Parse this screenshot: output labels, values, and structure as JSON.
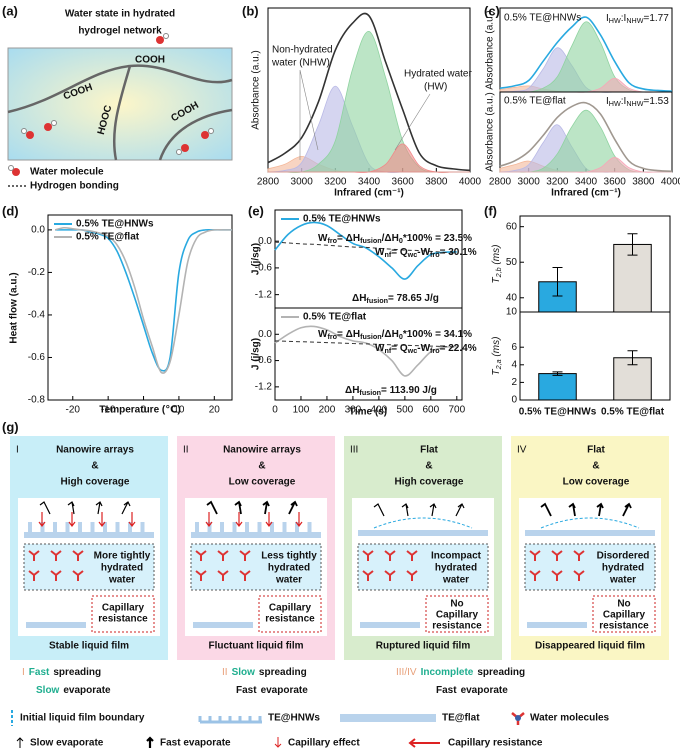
{
  "panel_labels": [
    "(a)",
    "(b)",
    "(c)",
    "(d)",
    "(e)",
    "(f)",
    "(g)"
  ],
  "panel_a": {
    "title": [
      "Water state in hydrated",
      "hydrogel network"
    ],
    "groups": [
      "COOH",
      "COOH",
      "HOOC",
      "COOH"
    ],
    "legend": [
      "Water molecule",
      "Hydrogen bonding"
    ]
  },
  "chart_data": [
    {
      "type": "line",
      "x": [
        2800,
        2900,
        3000,
        3100,
        3200,
        3300,
        3400,
        3500,
        3600,
        3700,
        3800,
        3900,
        4000
      ],
      "series": [
        {
          "kind": "area",
          "color": "#f4b89a",
          "values": [
            0.02,
            0.05,
            0.1,
            0.05,
            0.01,
            0,
            0,
            0,
            0,
            0,
            0,
            0,
            0
          ]
        },
        {
          "kind": "area",
          "color": "#b9b9e6",
          "values": [
            0,
            0.01,
            0.06,
            0.3,
            0.55,
            0.3,
            0.05,
            0,
            0,
            0,
            0,
            0,
            0
          ]
        },
        {
          "kind": "area",
          "color": "#8fd3a0",
          "values": [
            0,
            0,
            0,
            0.05,
            0.2,
            0.65,
            0.9,
            0.6,
            0.2,
            0.03,
            0,
            0,
            0
          ]
        },
        {
          "kind": "area",
          "color": "#f08a8a",
          "values": [
            0,
            0,
            0,
            0,
            0,
            0,
            0,
            0.05,
            0.18,
            0.04,
            0,
            0,
            0
          ]
        },
        {
          "kind": "line",
          "color": "#333333",
          "values": [
            0.06,
            0.12,
            0.22,
            0.45,
            0.78,
            0.95,
            1.0,
            0.7,
            0.4,
            0.12,
            0.04,
            0.02,
            0.01
          ]
        }
      ],
      "xlim": [
        2800,
        4000
      ],
      "xticks": [
        2800,
        3000,
        3200,
        3400,
        3600,
        3800,
        4000
      ],
      "ylim": [
        0,
        1.05
      ],
      "xlabel": "Infrared (cm⁻¹)",
      "ylabel": "Absorbance (a.u.)",
      "annotations": [
        "Non-hydrated",
        "water (NHW)",
        "Hydrated water",
        "(HW)"
      ]
    },
    {
      "type": "line",
      "x": [
        2800,
        2900,
        3000,
        3100,
        3200,
        3300,
        3400,
        3500,
        3600,
        3700,
        3800,
        3900,
        4000
      ],
      "series": [
        {
          "kind": "area",
          "color": "#f4b89a",
          "values": [
            0.03,
            0.06,
            0.08,
            0.04,
            0.01,
            0,
            0,
            0,
            0,
            0,
            0,
            0,
            0
          ]
        },
        {
          "kind": "area",
          "color": "#b9b9e6",
          "values": [
            0,
            0.01,
            0.05,
            0.3,
            0.58,
            0.35,
            0.06,
            0,
            0,
            0,
            0,
            0,
            0
          ]
        },
        {
          "kind": "area",
          "color": "#8fd3a0",
          "values": [
            0,
            0,
            0,
            0.05,
            0.2,
            0.6,
            0.92,
            0.65,
            0.2,
            0.03,
            0,
            0,
            0
          ]
        },
        {
          "kind": "area",
          "color": "#f5a9b8",
          "values": [
            0,
            0,
            0,
            0,
            0,
            0,
            0,
            0.05,
            0.18,
            0.05,
            0,
            0,
            0
          ]
        },
        {
          "kind": "line",
          "color": "#29a9e0",
          "values": [
            0.05,
            0.08,
            0.15,
            0.4,
            0.65,
            0.85,
            0.98,
            0.75,
            0.4,
            0.12,
            0.04,
            0.02,
            0.01
          ]
        }
      ],
      "xlim": [
        2800,
        4000
      ],
      "ylim": [
        0,
        1.1
      ],
      "ylabel": "Absorbance (a.u.)",
      "label": "0.5% TE@HNWs",
      "ratio": [
        "I",
        "HW",
        ":I",
        "NHW",
        "=1.77"
      ]
    },
    {
      "type": "line",
      "x": [
        2800,
        2900,
        3000,
        3100,
        3200,
        3300,
        3400,
        3500,
        3600,
        3700,
        3800,
        3900,
        4000
      ],
      "series": [
        {
          "kind": "area",
          "color": "#f4b89a",
          "values": [
            0.05,
            0.1,
            0.15,
            0.08,
            0.02,
            0,
            0,
            0,
            0,
            0,
            0,
            0,
            0
          ]
        },
        {
          "kind": "area",
          "color": "#b9b9e6",
          "values": [
            0,
            0.02,
            0.1,
            0.4,
            0.65,
            0.35,
            0.05,
            0,
            0,
            0,
            0,
            0,
            0
          ]
        },
        {
          "kind": "area",
          "color": "#8fd3a0",
          "values": [
            0,
            0,
            0,
            0.05,
            0.25,
            0.62,
            0.85,
            0.62,
            0.22,
            0.03,
            0,
            0,
            0
          ]
        },
        {
          "kind": "area",
          "color": "#f5a9b8",
          "values": [
            0,
            0,
            0,
            0,
            0,
            0,
            0,
            0.06,
            0.2,
            0.06,
            0,
            0,
            0
          ]
        },
        {
          "kind": "line",
          "color": "#a09890",
          "values": [
            0.08,
            0.15,
            0.28,
            0.5,
            0.75,
            0.9,
            0.95,
            0.8,
            0.45,
            0.15,
            0.05,
            0.02,
            0.01
          ]
        }
      ],
      "xlim": [
        2800,
        4000
      ],
      "xticks": [
        2800,
        3000,
        3200,
        3400,
        3600,
        3800,
        4000
      ],
      "ylim": [
        0,
        1.1
      ],
      "xlabel": "Infrared (cm⁻¹)",
      "ylabel": "Absorbance (a.u.)",
      "label": "0.5% TE@flat",
      "ratio": [
        "I",
        "HW",
        ":I",
        "NHW",
        "=1.53"
      ]
    },
    {
      "type": "line",
      "x": [
        -25,
        -22.5,
        -20,
        -17.5,
        -15,
        -12.5,
        -10,
        -7.5,
        -5,
        -2.5,
        0,
        2.5,
        5,
        7.5,
        10,
        12.5,
        15,
        17.5,
        20,
        22.5,
        25
      ],
      "series": [
        {
          "name": "0.5% TE@HNWs",
          "kind": "line",
          "color": "#29a9e0",
          "values": [
            0,
            0,
            0,
            0,
            -0.01,
            -0.02,
            -0.04,
            -0.1,
            -0.2,
            -0.32,
            -0.45,
            -0.58,
            -0.66,
            -0.6,
            -0.2,
            -0.05,
            -0.01,
            0,
            0,
            0,
            0
          ]
        },
        {
          "name": "0.5% TE@flat",
          "kind": "line",
          "color": "#b3b3b3",
          "values": [
            0,
            0.01,
            0.005,
            0,
            -0.005,
            -0.015,
            -0.03,
            -0.07,
            -0.15,
            -0.27,
            -0.42,
            -0.55,
            -0.67,
            -0.62,
            -0.4,
            -0.15,
            -0.04,
            -0.01,
            0,
            0,
            0
          ]
        }
      ],
      "xlim": [
        -27,
        25
      ],
      "xticks": [
        -20,
        -10,
        0,
        10,
        20
      ],
      "ylim": [
        -0.8,
        0.07
      ],
      "yticks": [
        {
          "value": 0,
          "label": "0.0"
        },
        -0.2,
        -0.4,
        -0.6,
        -0.8
      ],
      "xlabel": "Temperature (℃)",
      "ylabel": "Heat flow (a.u.)",
      "legend": "upper left"
    },
    {
      "type": "line",
      "x": [
        0,
        50,
        100,
        150,
        200,
        250,
        300,
        350,
        400,
        450,
        500,
        550,
        600,
        650,
        700
      ],
      "series": [
        {
          "name": "0.5% TE@HNWs",
          "kind": "line",
          "color": "#29a9e0",
          "values": [
            -0.2,
            0.15,
            0.35,
            0.42,
            0.35,
            0.15,
            -0.05,
            -0.15,
            -0.35,
            -0.6,
            -0.85,
            -0.55,
            -0.3,
            -0.25,
            -0.24
          ]
        },
        {
          "kind": "dashed",
          "color": "#333333",
          "values": [
            -0.02,
            -0.04,
            -0.06,
            -0.07,
            -0.09,
            -0.11,
            -0.13,
            -0.14,
            -0.16,
            -0.18,
            -0.2,
            -0.21,
            -0.23,
            -0.25,
            -0.27
          ]
        }
      ],
      "xlim": [
        0,
        720
      ],
      "ylim": [
        -1.5,
        0.7
      ],
      "yticks": [
        {
          "value": 0,
          "label": "0.0"
        },
        -0.6,
        -1.2
      ],
      "ylabel": "J (j/sg)",
      "legend": "upper left",
      "wfro": [
        "W",
        "fro",
        "= ΔH",
        "fusion",
        "/ΔH",
        "0",
        "*100% = 23.5%"
      ],
      "wnf": [
        "W",
        "nf",
        "= Q",
        "wc",
        "-W",
        "fro",
        "= 30.1%"
      ],
      "dh": [
        "ΔH",
        "fusion",
        "= 78.65 J/g"
      ]
    },
    {
      "type": "line",
      "x": [
        0,
        50,
        100,
        150,
        200,
        250,
        300,
        350,
        400,
        450,
        500,
        550,
        600,
        650,
        700
      ],
      "series": [
        {
          "name": "0.5% TE@flat",
          "kind": "line",
          "color": "#b3b3b3",
          "values": [
            -0.2,
            0.0,
            0.15,
            0.18,
            0.1,
            -0.05,
            -0.15,
            -0.2,
            -0.35,
            -0.6,
            -0.95,
            -0.7,
            -0.4,
            -0.3,
            -0.28
          ]
        },
        {
          "kind": "dashed",
          "color": "#333333",
          "values": [
            -0.15,
            -0.16,
            -0.17,
            -0.18,
            -0.19,
            -0.2,
            -0.21,
            -0.22,
            -0.23,
            -0.24,
            -0.25,
            -0.26,
            -0.27,
            -0.28,
            -0.29
          ]
        }
      ],
      "xlim": [
        0,
        720
      ],
      "xticks": [
        0,
        100,
        200,
        300,
        400,
        500,
        600,
        700
      ],
      "ylim": [
        -1.5,
        0.6
      ],
      "yticks": [
        {
          "value": 0,
          "label": "0.0"
        },
        -0.6,
        -1.2
      ],
      "xlabel": "Time (s)",
      "ylabel": "J (j/sg)",
      "legend": "upper left",
      "wfro": [
        "W",
        "fro",
        "= ΔH",
        "fusion",
        "/ΔH",
        "0",
        "*100% = 34.1%"
      ],
      "wnf": [
        "W",
        "nf",
        "= Q",
        "wc",
        "-W",
        "fro",
        "= 22.4%"
      ],
      "dh": [
        "ΔH",
        "fusion",
        "= 113.90 J/g"
      ]
    },
    {
      "type": "bar",
      "values": [
        44.5,
        55
      ],
      "errors": [
        4,
        3
      ],
      "colors": [
        "#29a9e0",
        "#e2ded8"
      ],
      "ylim": [
        36,
        63
      ],
      "yticks": [
        40,
        50,
        60
      ],
      "ylabel": [
        "T",
        "2,b",
        " (ms)"
      ]
    },
    {
      "type": "bar",
      "categories": [
        "0.5% TE@HNWs",
        "0.5% TE@flat"
      ],
      "values": [
        3.0,
        4.8
      ],
      "errors": [
        0.2,
        0.8
      ],
      "colors": [
        "#29a9e0",
        "#e2ded8"
      ],
      "ylim": [
        0,
        10
      ],
      "yticks": [
        0,
        2,
        4,
        6,
        10
      ],
      "ylabel": [
        "T",
        "2,a",
        " (ms)"
      ]
    }
  ],
  "panel_g": {
    "columns": [
      {
        "roman": "I",
        "title": [
          "Nanowire arrays",
          "&",
          "High coverage"
        ],
        "water": [
          "More tightly",
          "hydrated",
          "water"
        ],
        "resistance": [
          "Capillary",
          "resistance"
        ],
        "film": "Stable liquid film"
      },
      {
        "roman": "II",
        "title": [
          "Nanowire arrays",
          "&",
          "Low coverage"
        ],
        "water": [
          "Less tightly",
          "hydrated",
          "water"
        ],
        "resistance": [
          "Capillary",
          "resistance"
        ],
        "film": "Fluctuant liquid film"
      },
      {
        "roman": "III",
        "title": [
          "Flat",
          "&",
          "High coverage"
        ],
        "water": [
          "Incompact",
          "hydrated",
          "water"
        ],
        "resistance": [
          "No",
          "Capillary",
          "resistance"
        ],
        "film": "Ruptured liquid film"
      },
      {
        "roman": "IV",
        "title": [
          "Flat",
          "&",
          "Low coverage"
        ],
        "water": [
          "Disordered",
          "hydrated",
          "water"
        ],
        "resistance": [
          "No",
          "Capillary",
          "resistance"
        ],
        "film": "Disappeared liquid film"
      }
    ],
    "summary": [
      {
        "line1": [
          "I",
          "Fast",
          "spreading"
        ],
        "line2": [
          "Slow",
          "evaporate"
        ]
      },
      {
        "line1": [
          "II",
          "Slow",
          "spreading"
        ],
        "line2": [
          "Fast",
          "evaporate"
        ]
      },
      {
        "line1": [
          "III/IV",
          "Incomplete",
          "spreading"
        ],
        "line2": [
          "Fast",
          "evaporate"
        ]
      }
    ],
    "legend": [
      "Initial liquid film boundary",
      "TE@HNWs",
      "TE@flat",
      "Water molecules",
      "Slow evaporate",
      "Fast evaporate",
      "Capillary effect",
      "Capillary resistance"
    ]
  }
}
